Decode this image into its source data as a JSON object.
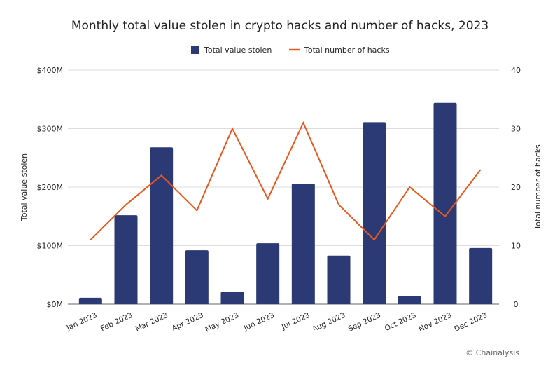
{
  "chart_data": {
    "type": "bar",
    "title": "Monthly total value stolen in crypto hacks and number of hacks, 2023",
    "categories": [
      "Jan 2023",
      "Feb 2023",
      "Mar 2023",
      "Apr 2023",
      "May 2023",
      "Jun 2023",
      "Jul 2023",
      "Aug 2023",
      "Sep 2023",
      "Oct 2023",
      "Nov 2023",
      "Dec 2023"
    ],
    "series": [
      {
        "name": "Total value stolen",
        "type": "bar",
        "axis": "left",
        "unit": "$M",
        "color": "#2b3a75",
        "values": [
          11,
          152,
          268,
          92,
          21,
          104,
          206,
          83,
          311,
          14,
          344,
          96
        ]
      },
      {
        "name": "Total number of hacks",
        "type": "line",
        "axis": "right",
        "color": "#e8581c",
        "values": [
          11,
          17,
          22,
          16,
          30,
          18,
          31,
          17,
          11,
          20,
          15,
          23
        ]
      }
    ],
    "ylabel": "Total value stolen",
    "ylabel_right": "Total number of hacks",
    "ylim": [
      0,
      400
    ],
    "ylim_right": [
      0,
      40
    ],
    "yticks": [
      "$0M",
      "$100M",
      "$200M",
      "$300M",
      "$400M"
    ],
    "yticks_right": [
      "0",
      "10",
      "20",
      "30",
      "40"
    ],
    "grid": true,
    "legend_position": "top-center",
    "source": "© Chainalysis"
  }
}
